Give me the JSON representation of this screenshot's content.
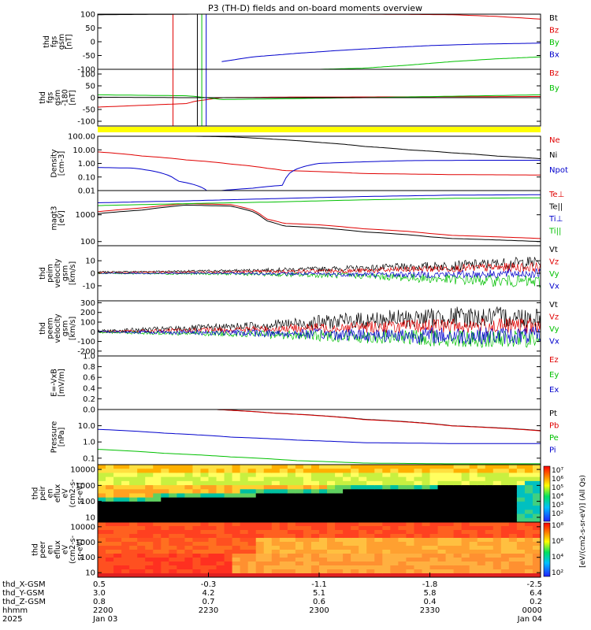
{
  "chart_data": {
    "type": "line",
    "title": "P3 (TH-D) fields and on-board moments overview",
    "panels": [
      {
        "id": "fgs-1",
        "ylabel": [
          "thd",
          "fgs",
          "gsm",
          "[nT]"
        ],
        "ylim": [
          -100,
          100
        ],
        "yticks": [
          100,
          50,
          0,
          -50,
          -100
        ],
        "log": false,
        "series": [
          {
            "name": "Bt",
            "color": "#000000",
            "x": [
              0,
              0.22,
              0.27,
              0.4,
              0.6,
              0.8,
              1.0
            ],
            "y": [
              98,
              100,
              100,
              100,
              100,
              100,
              100
            ]
          },
          {
            "name": "Bz",
            "color": "#e00000",
            "x": [
              0,
              0.6,
              0.8,
              0.9,
              1.0
            ],
            "y": [
              100,
              100,
              98,
              92,
              82
            ]
          },
          {
            "name": "By",
            "color": "#00c000",
            "x": [
              0.28,
              0.5,
              0.6,
              0.7,
              0.8,
              0.9,
              1.0
            ],
            "y": [
              -100,
              -100,
              -96,
              -85,
              -72,
              -62,
              -55
            ]
          },
          {
            "name": "Bx",
            "color": "#0000cc",
            "x": [
              0.28,
              0.35,
              0.45,
              0.55,
              0.65,
              0.75,
              0.85,
              1.0
            ],
            "y": [
              -72,
              -55,
              -42,
              -31,
              -22,
              -14,
              -9,
              -5
            ]
          }
        ],
        "legend": [
          {
            "label": "Bt",
            "color": "#000000"
          },
          {
            "label": "Bz",
            "color": "#e00000"
          },
          {
            "label": "By",
            "color": "#00c000"
          },
          {
            "label": "Bx",
            "color": "#0000cc"
          }
        ]
      },
      {
        "id": "fgs-2",
        "ylabel": [
          "thd",
          "fgs",
          "gsm",
          "-180",
          "[nT]"
        ],
        "ylim": [
          -120,
          120
        ],
        "yticks": [
          100,
          50,
          0,
          -50,
          -100
        ],
        "log": false,
        "series": [
          {
            "name": "Bz",
            "color": "#e00000",
            "x": [
              0,
              0.2,
              0.22,
              0.28,
              0.4,
              0.6,
              0.8,
              1.0
            ],
            "y": [
              -40,
              -25,
              -15,
              0,
              2,
              3,
              4,
              5
            ]
          },
          {
            "name": "By",
            "color": "#00c000",
            "x": [
              0,
              0.2,
              0.22,
              0.28,
              0.4,
              0.6,
              0.8,
              1.0
            ],
            "y": [
              12,
              8,
              5,
              -8,
              -5,
              0,
              6,
              12
            ]
          },
          {
            "name": "Bt",
            "color": "#000000",
            "x": [
              0,
              0.2,
              0.28,
              0.5,
              0.8,
              1.0
            ],
            "y": [
              2,
              0,
              0,
              0,
              0,
              0
            ]
          }
        ],
        "legend": [
          {
            "label": "Bz",
            "color": "#e00000"
          },
          {
            "label": "By",
            "color": "#00c000"
          }
        ]
      },
      {
        "id": "density",
        "ylabel": [
          "Density",
          "[cm-3]"
        ],
        "ylim": [
          0.01,
          100
        ],
        "yticks": [
          100,
          10,
          1,
          0.1,
          0.01
        ],
        "ytick_labels": [
          "100.00",
          "10.00",
          "1.00",
          "0.10",
          "0.01"
        ],
        "log": true,
        "series": [
          {
            "name": "Ni",
            "color": "#000000",
            "x": [
              0.22,
              0.3,
              0.4,
              0.5,
              0.6,
              0.7,
              0.8,
              0.9,
              1.0
            ],
            "y": [
              100,
              90,
              60,
              35,
              18,
              10,
              6,
              3.5,
              2.2
            ]
          },
          {
            "name": "Ne",
            "color": "#e00000",
            "x": [
              0,
              0.1,
              0.2,
              0.3,
              0.38,
              0.42,
              0.5,
              0.6,
              0.8,
              1.0
            ],
            "y": [
              7,
              3.5,
              1.8,
              0.9,
              0.45,
              0.3,
              0.25,
              0.18,
              0.15,
              0.14
            ]
          },
          {
            "name": "Npot",
            "color": "#0000cc",
            "x": [
              0,
              0.08,
              0.18,
              0.25,
              0.35,
              0.42,
              0.5,
              0.7,
              0.85,
              1.0
            ],
            "y": [
              0.5,
              0.45,
              0.05,
              0.008,
              0.015,
              0.025,
              1,
              1.6,
              1.7,
              1.7
            ]
          }
        ],
        "legend": [
          {
            "label": "Ne",
            "color": "#e00000"
          },
          {
            "label": "Ni",
            "color": "#000000"
          },
          {
            "label": "Npot",
            "color": "#0000cc"
          }
        ]
      },
      {
        "id": "temperature",
        "ylabel": [
          "magt3",
          "[eV]"
        ],
        "ylim": [
          70,
          8000
        ],
        "yticks": [
          1000,
          100
        ],
        "ytick_labels": [
          "1000",
          "100"
        ],
        "log": true,
        "series": [
          {
            "name": "Te⊥",
            "color": "#e00000",
            "x": [
              0,
              0.1,
              0.2,
              0.3,
              0.35,
              0.38,
              0.42,
              0.5,
              0.6,
              0.7,
              0.75,
              0.8,
              0.9,
              1.0
            ],
            "y": [
              1300,
              1800,
              2600,
              2400,
              1500,
              700,
              480,
              420,
              300,
              240,
              200,
              170,
              150,
              130
            ]
          },
          {
            "name": "Te||",
            "color": "#000000",
            "x": [
              0,
              0.1,
              0.2,
              0.3,
              0.35,
              0.38,
              0.42,
              0.5,
              0.6,
              0.7,
              0.75,
              0.8,
              0.9,
              1.0
            ],
            "y": [
              1100,
              1500,
              2300,
              2100,
              1300,
              600,
              380,
              330,
              230,
              180,
              150,
              130,
              115,
              100
            ]
          },
          {
            "name": "Ti⊥",
            "color": "#0000cc",
            "x": [
              0,
              0.2,
              0.4,
              0.6,
              0.8,
              1.0
            ],
            "y": [
              2800,
              3300,
              4000,
              4800,
              5400,
              5600
            ]
          },
          {
            "name": "Ti||",
            "color": "#00c000",
            "x": [
              0,
              0.2,
              0.4,
              0.6,
              0.8,
              1.0
            ],
            "y": [
              2200,
              2600,
              3000,
              3600,
              4100,
              4300
            ]
          }
        ],
        "legend": [
          {
            "label": "Te⊥",
            "color": "#e00000"
          },
          {
            "label": "Te||",
            "color": "#000000"
          },
          {
            "label": "Ti⊥",
            "color": "#0000cc"
          },
          {
            "label": "Ti||",
            "color": "#00c000"
          }
        ]
      },
      {
        "id": "peim-velocity",
        "ylabel": [
          "thd",
          "peim",
          "velocity",
          "gsm",
          "[km/s]"
        ],
        "ylim": [
          -22,
          22
        ],
        "yticks": [
          10,
          0,
          -10
        ],
        "log": false,
        "noisy": true,
        "series": [
          {
            "name": "Vt",
            "color": "#000000",
            "x": [
              0,
              0.3,
              0.6,
              0.8,
              1.0
            ],
            "y": [
              1,
              2,
              4,
              6,
              9
            ],
            "amp": [
              0.5,
              1,
              2.5,
              4,
              5
            ]
          },
          {
            "name": "Vz",
            "color": "#e00000",
            "x": [
              0,
              0.3,
              0.6,
              0.8,
              1.0
            ],
            "y": [
              0.5,
              1,
              2,
              4,
              5
            ],
            "amp": [
              0.5,
              1,
              2,
              3,
              4
            ]
          },
          {
            "name": "Vy",
            "color": "#00c000",
            "x": [
              0,
              0.3,
              0.6,
              0.8,
              1.0
            ],
            "y": [
              0,
              -0.5,
              -2,
              -5,
              -7
            ],
            "amp": [
              0.5,
              1,
              2.5,
              4,
              5
            ]
          },
          {
            "name": "Vx",
            "color": "#0000cc",
            "x": [
              0,
              0.3,
              0.6,
              0.8,
              1.0
            ],
            "y": [
              0,
              0,
              -1,
              -1,
              0
            ],
            "amp": [
              0.3,
              0.8,
              2,
              3,
              4
            ]
          }
        ],
        "legend": [
          {
            "label": "Vt",
            "color": "#000000"
          },
          {
            "label": "Vz",
            "color": "#e00000"
          },
          {
            "label": "Vy",
            "color": "#00c000"
          },
          {
            "label": "Vx",
            "color": "#0000cc"
          }
        ]
      },
      {
        "id": "peem-velocity",
        "ylabel": [
          "thd",
          "peem",
          "velocity",
          "gsm",
          "[km/s]"
        ],
        "ylim": [
          -250,
          320
        ],
        "yticks": [
          300,
          200,
          100,
          0,
          -100,
          -200
        ],
        "log": false,
        "noisy": true,
        "series": [
          {
            "name": "Vt",
            "color": "#000000",
            "x": [
              0,
              0.3,
              0.6,
              0.8,
              1.0
            ],
            "y": [
              5,
              50,
              120,
              150,
              150
            ],
            "amp": [
              15,
              40,
              90,
              110,
              110
            ]
          },
          {
            "name": "Vz",
            "color": "#e00000",
            "x": [
              0,
              0.3,
              0.6,
              0.8,
              1.0
            ],
            "y": [
              0,
              20,
              50,
              60,
              60
            ],
            "amp": [
              10,
              30,
              60,
              80,
              80
            ]
          },
          {
            "name": "Vy",
            "color": "#00c000",
            "x": [
              0,
              0.3,
              0.6,
              0.8,
              1.0
            ],
            "y": [
              -5,
              -20,
              -50,
              -70,
              -80
            ],
            "amp": [
              10,
              30,
              70,
              90,
              90
            ]
          },
          {
            "name": "Vx",
            "color": "#0000cc",
            "x": [
              0,
              0.3,
              0.6,
              0.8,
              1.0
            ],
            "y": [
              0,
              -10,
              -30,
              -40,
              -40
            ],
            "amp": [
              10,
              30,
              70,
              90,
              90
            ]
          }
        ],
        "legend": [
          {
            "label": "Vt",
            "color": "#000000"
          },
          {
            "label": "Vz",
            "color": "#e00000"
          },
          {
            "label": "Vy",
            "color": "#00c000"
          },
          {
            "label": "Vx",
            "color": "#0000cc"
          }
        ]
      },
      {
        "id": "efield",
        "ylabel": [
          "E=-VxB",
          "[mV/m]"
        ],
        "ylim": [
          0,
          1
        ],
        "yticks": [
          1.0,
          0.8,
          0.6,
          0.4,
          0.2,
          0.0
        ],
        "ytick_labels": [
          "1.0",
          "0.8",
          "0.6",
          "0.4",
          "0.2",
          "0.0"
        ],
        "log": false,
        "series": [],
        "legend": [
          {
            "label": "Ez",
            "color": "#e00000"
          },
          {
            "label": "Ey",
            "color": "#00c000"
          },
          {
            "label": "Ex",
            "color": "#0000cc"
          }
        ]
      },
      {
        "id": "pressure",
        "ylabel": [
          "Pressure",
          "[nPa]"
        ],
        "ylim": [
          0.04,
          100
        ],
        "yticks": [
          10,
          1,
          0.1
        ],
        "ytick_labels": [
          "10.0",
          "1.0",
          "0.1"
        ],
        "log": true,
        "series": [
          {
            "name": "Pt",
            "color": "#000000",
            "x": [
              0.27,
              0.4,
              0.6,
              0.8,
              1.0
            ],
            "y": [
              100,
              60,
              25,
              10,
              5
            ]
          },
          {
            "name": "Pb",
            "color": "#e00000",
            "x": [
              0.27,
              0.4,
              0.6,
              0.8,
              1.0
            ],
            "y": [
              99,
              59,
              24,
              9.7,
              4.8
            ]
          },
          {
            "name": "Pe",
            "color": "#00c000",
            "x": [
              0,
              0.15,
              0.3,
              0.45,
              0.6,
              0.8,
              1.0
            ],
            "y": [
              0.35,
              0.2,
              0.12,
              0.07,
              0.05,
              0.045,
              0.045
            ]
          },
          {
            "name": "Pi",
            "color": "#0000cc",
            "x": [
              0,
              0.15,
              0.3,
              0.45,
              0.6,
              0.8,
              1.0
            ],
            "y": [
              6,
              3.5,
              2,
              1.3,
              0.9,
              0.8,
              0.8
            ]
          }
        ],
        "legend": [
          {
            "label": "Pt",
            "color": "#000000"
          },
          {
            "label": "Pb",
            "color": "#e00000"
          },
          {
            "label": "Pe",
            "color": "#00c000"
          },
          {
            "label": "Pi",
            "color": "#0000cc"
          }
        ]
      },
      {
        "id": "peir-spectrogram",
        "type": "heatmap",
        "ylabel": [
          "thd",
          "peir",
          "en",
          "eflux",
          "eV",
          "(cm2-s-",
          "sr-eV)"
        ],
        "ylim": [
          5,
          20000
        ],
        "yticks": [
          10000,
          1000,
          100,
          10
        ],
        "ytick_labels": [
          "10000",
          "1000",
          "100",
          "10"
        ],
        "log": true
      },
      {
        "id": "peer-spectrogram",
        "type": "heatmap",
        "ylabel": [
          "thd",
          "peer",
          "en",
          "eflux",
          "eV",
          "(cm2-s-",
          "sr-eV)"
        ],
        "ylim": [
          5,
          20000
        ],
        "yticks": [
          10000,
          1000,
          100,
          10
        ],
        "ytick_labels": [
          "10000",
          "1000",
          "100",
          "10"
        ],
        "log": true
      }
    ],
    "colorbar": {
      "label": "[eV/(cm2-s-sr-eV)] (All Qs)",
      "ion_ticks": [
        "10⁷",
        "10⁶",
        "10⁵",
        "10⁴",
        "10³",
        "10²"
      ],
      "electron_ticks": [
        "10⁸",
        "10⁶",
        "10⁴",
        "10²"
      ]
    },
    "x_axis": {
      "rows": [
        {
          "label": "thd_X-GSM",
          "values": [
            "0.5",
            "-0.3",
            "-1.1",
            "-1.8",
            "-2.5"
          ]
        },
        {
          "label": "thd_Y-GSM",
          "values": [
            "3.0",
            "4.2",
            "5.1",
            "5.8",
            "6.4"
          ]
        },
        {
          "label": "thd_Z-GSM",
          "values": [
            "0.8",
            "0.7",
            "0.6",
            "0.4",
            "0.2"
          ]
        },
        {
          "label": "hhmm",
          "values": [
            "2200",
            "2230",
            "2300",
            "2330",
            "0000"
          ]
        },
        {
          "label": "2025",
          "values": [
            "Jan 03",
            "",
            "",
            "",
            "Jan 04"
          ]
        }
      ]
    }
  }
}
